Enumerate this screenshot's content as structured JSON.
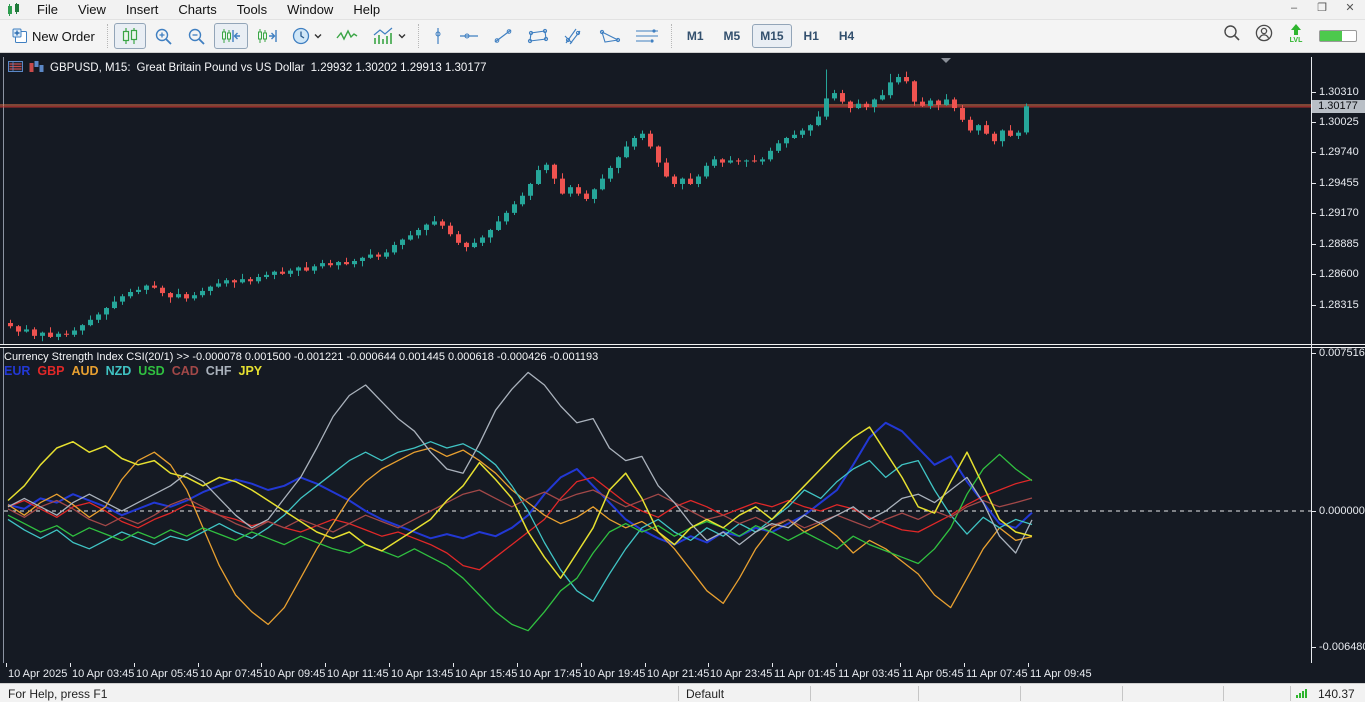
{
  "menu": {
    "items": [
      "File",
      "View",
      "Insert",
      "Charts",
      "Tools",
      "Window",
      "Help"
    ]
  },
  "window_controls": {
    "minimize": "–",
    "maximize": "❐",
    "close": "✕"
  },
  "toolbar": {
    "new_order_label": "New Order",
    "timeframes": [
      {
        "label": "M1",
        "active": false
      },
      {
        "label": "M5",
        "active": false
      },
      {
        "label": "M15",
        "active": true
      },
      {
        "label": "H1",
        "active": false
      },
      {
        "label": "H4",
        "active": false
      }
    ]
  },
  "chart": {
    "title_symbol": "GBPUSD, M15:",
    "title_description": "Great Britain Pound vs US Dollar",
    "title_ohlc": "1.29932 1.30202 1.29913 1.30177",
    "price_axis_labels": [
      "1.30310",
      "1.30025",
      "1.29740",
      "1.29455",
      "1.29170",
      "1.28885",
      "1.28600",
      "1.28315"
    ],
    "current_price_label": "1.30177",
    "colors": {
      "up": "#26a69a",
      "down": "#ef5350",
      "ask_line": "#e8744a",
      "bid_line": "#dd3c34",
      "background": "#151a23"
    }
  },
  "indicator": {
    "title": "Currency Strength Index CSI(20/1) >>",
    "values_line": "-0.000078 0.001500 -0.001221 -0.000644 0.001445 0.000618 -0.000426 -0.001193",
    "axis_labels": [
      {
        "label": "0.007516",
        "value": 0.007516
      },
      {
        "label": "0.000000",
        "value": 0.0
      },
      {
        "label": "-0.006480",
        "value": -0.00648
      }
    ],
    "legend": [
      {
        "label": "EUR",
        "color": "#2238d4"
      },
      {
        "label": "GBP",
        "color": "#e02828"
      },
      {
        "label": "AUD",
        "color": "#e8a030"
      },
      {
        "label": "NZD",
        "color": "#40c4c4"
      },
      {
        "label": "USD",
        "color": "#30c040"
      },
      {
        "label": "CAD",
        "color": "#a24848"
      },
      {
        "label": "CHF",
        "color": "#aab2bc"
      },
      {
        "label": "JPY",
        "color": "#e6e030"
      }
    ]
  },
  "time_axis": {
    "labels": [
      "10 Apr 2025",
      "10 Apr 03:45",
      "10 Apr 05:45",
      "10 Apr 07:45",
      "10 Apr 09:45",
      "10 Apr 11:45",
      "10 Apr 13:45",
      "10 Apr 15:45",
      "10 Apr 17:45",
      "10 Apr 19:45",
      "10 Apr 21:45",
      "10 Apr 23:45",
      "11 Apr 01:45",
      "11 Apr 03:45",
      "11 Apr 05:45",
      "11 Apr 07:45",
      "11 Apr 09:45"
    ]
  },
  "status_bar": {
    "help_text": "For Help, press F1",
    "profile": "Default",
    "latency": "140.37 ms"
  },
  "chart_data": [
    {
      "type": "candlestick",
      "symbol": "GBPUSD",
      "timeframe": "M15",
      "title": "Great Britain Pound vs US Dollar",
      "ylim": [
        1.2795,
        1.3055
      ],
      "current_price": 1.30177,
      "open_rule": "previous_close",
      "first_open": 1.2815,
      "closes": [
        1.2812,
        1.2807,
        1.2809,
        1.2803,
        1.2806,
        1.2802,
        1.2805,
        1.2804,
        1.2808,
        1.2813,
        1.2818,
        1.2823,
        1.2829,
        1.2835,
        1.284,
        1.2844,
        1.2846,
        1.285,
        1.2848,
        1.2843,
        1.2839,
        1.2842,
        1.2838,
        1.2841,
        1.2845,
        1.2849,
        1.2852,
        1.2855,
        1.2853,
        1.2856,
        1.2854,
        1.2858,
        1.286,
        1.2863,
        1.2861,
        1.2864,
        1.2867,
        1.2864,
        1.2868,
        1.2871,
        1.2869,
        1.2872,
        1.287,
        1.2873,
        1.2876,
        1.2879,
        1.2877,
        1.2881,
        1.2888,
        1.2893,
        1.2897,
        1.2902,
        1.2907,
        1.291,
        1.2906,
        1.2898,
        1.289,
        1.2886,
        1.289,
        1.2895,
        1.2902,
        1.291,
        1.2918,
        1.2926,
        1.2934,
        1.2945,
        1.2958,
        1.2963,
        1.295,
        1.2936,
        1.2942,
        1.2936,
        1.2931,
        1.294,
        1.295,
        1.296,
        1.297,
        1.298,
        1.2988,
        1.2992,
        1.298,
        1.2965,
        1.2952,
        1.2945,
        1.295,
        1.2945,
        1.2952,
        1.2962,
        1.2968,
        1.2965,
        1.2967,
        1.2966,
        1.2967,
        1.2966,
        1.2968,
        1.2976,
        1.2983,
        1.2988,
        1.2991,
        1.2995,
        1.3,
        1.3008,
        1.3025,
        1.303,
        1.3022,
        1.3016,
        1.302,
        1.3017,
        1.3024,
        1.3028,
        1.304,
        1.3045,
        1.3041,
        1.3022,
        1.3018,
        1.3023,
        1.3019,
        1.3024,
        1.3016,
        1.3005,
        1.2995,
        1.3,
        1.2992,
        1.2985,
        1.2995,
        1.299,
        1.2993,
        1.30177
      ],
      "wick_high_pads": [
        0.0003,
        0.0001,
        0.0004,
        0.0002,
        0.0001,
        0.0005,
        0.0002,
        0.0003
      ],
      "wick_low_pads": [
        0.0002,
        0.0004,
        0.0001,
        0.0003,
        0.0005,
        0.0001,
        0.0003,
        0.0002
      ],
      "overrides": {
        "102": {
          "high": 1.3052
        },
        "110": {
          "high": 1.3048
        },
        "112": {
          "high": 1.305
        },
        "127": {
          "open": 1.29932,
          "high": 1.30202,
          "low": 1.29913,
          "close": 1.30177
        }
      }
    },
    {
      "type": "line",
      "title": "Currency Strength Index CSI(20/1)",
      "ylim": [
        -0.00648,
        0.007516
      ],
      "zero_line": 0,
      "legend_position": "top-left",
      "series": [
        {
          "name": "EUR",
          "color": "#2238d4",
          "width": 2,
          "values": [
            0.0003,
            0.0001,
            0.0006,
            0.0004,
            0.0008,
            0.0005,
            0.0002,
            -0.0002,
            0.0001,
            0.0004,
            0.0002,
            0.0005,
            0.0009,
            0.0012,
            0.0015,
            0.0013,
            0.001,
            0.0012,
            0.0016,
            0.0013,
            0.0009,
            0.0005,
            0.0,
            -0.0004,
            -0.0007,
            -0.001,
            -0.0013,
            -0.0011,
            -0.0013,
            -0.001,
            -0.0012,
            -0.0008,
            -0.0002,
            0.0008,
            0.0016,
            0.002,
            0.0012,
            0.0004,
            -0.0004,
            -0.0009,
            -0.0013,
            -0.0016,
            -0.0012,
            -0.0015,
            -0.001,
            -0.0012,
            -0.0008,
            -0.001,
            -0.0006,
            -0.0002,
            0.0004,
            0.001,
            0.0022,
            0.0035,
            0.0042,
            0.0038,
            0.003,
            0.0022,
            0.0026,
            0.0014,
            0.0004,
            -0.0006,
            -0.0008,
            -7.8e-05
          ]
        },
        {
          "name": "GBP",
          "color": "#e02828",
          "width": 1.3,
          "values": [
            0.0002,
            0.0005,
            0.0001,
            -0.0003,
            0.0002,
            0.0004,
            0.0,
            -0.0005,
            -0.0008,
            -0.0004,
            -0.0001,
            0.0003,
            0.0001,
            -0.0002,
            -0.0004,
            -0.0007,
            -0.0005,
            -0.0008,
            -0.001,
            -0.0007,
            -0.0004,
            -0.0006,
            -0.0009,
            -0.0012,
            -0.001,
            -0.0013,
            -0.0016,
            -0.002,
            -0.0026,
            -0.0028,
            -0.0022,
            -0.0016,
            -0.001,
            -0.0004,
            0.0006,
            0.0014,
            0.0016,
            0.001,
            0.0004,
            0.0,
            -0.0003,
            0.0002,
            0.0005,
            0.0002,
            -0.0002,
            0.0001,
            0.0004,
            0.0002,
            0.0005,
            0.0002,
            0.0,
            0.0003,
            0.0001,
            -0.0003,
            -0.0006,
            -0.0009,
            -0.001,
            -0.0006,
            -0.0002,
            0.0003,
            0.0007,
            0.001,
            0.0013,
            0.0015
          ]
        },
        {
          "name": "AUD",
          "color": "#e8a030",
          "width": 1.3,
          "values": [
            0.0003,
            -0.0002,
            0.0004,
            0.0008,
            0.0003,
            -0.0003,
            0.0002,
            0.0015,
            0.0024,
            0.0028,
            0.0022,
            0.001,
            -0.0008,
            -0.0026,
            -0.004,
            -0.0048,
            -0.0054,
            -0.0046,
            -0.0032,
            -0.0018,
            -0.0006,
            0.0006,
            0.0014,
            0.002,
            0.0024,
            0.0028,
            0.003,
            0.0026,
            0.0029,
            0.0024,
            0.0018,
            0.001,
            0.0004,
            -0.0002,
            -0.0006,
            -0.0003,
            0.0002,
            -0.0004,
            -0.0008,
            -0.0005,
            -0.001,
            -0.0018,
            -0.0028,
            -0.0038,
            -0.0044,
            -0.0032,
            -0.0018,
            -0.0008,
            -0.0004,
            -0.001,
            -0.0006,
            -0.0012,
            -0.002,
            -0.0014,
            -0.0018,
            -0.0024,
            -0.003,
            -0.004,
            -0.0046,
            -0.0032,
            -0.0018,
            -0.0008,
            -0.0014,
            -0.001221
          ]
        },
        {
          "name": "NZD",
          "color": "#40c4c4",
          "width": 1.3,
          "values": [
            -0.0004,
            -0.0009,
            -0.0013,
            -0.0009,
            -0.0015,
            -0.0018,
            -0.0014,
            -0.001,
            -0.0013,
            -0.0016,
            -0.0012,
            -0.0014,
            -0.001,
            -0.0006,
            -0.001,
            -0.0013,
            -0.0008,
            -0.0002,
            0.0006,
            0.0012,
            0.0018,
            0.0024,
            0.0028,
            0.0024,
            0.0028,
            0.003,
            0.0033,
            0.003,
            0.0032,
            0.0028,
            0.0022,
            0.0012,
            0.0,
            -0.0015,
            -0.0028,
            -0.0038,
            -0.0043,
            -0.003,
            -0.0018,
            -0.0008,
            -0.0004,
            -0.001,
            -0.0014,
            -0.0008,
            -0.0012,
            -0.0006,
            -0.001,
            -0.0004,
            0.0002,
            0.001,
            0.0006,
            0.0014,
            0.002,
            0.0024,
            0.0016,
            0.0022,
            0.0024,
            0.001,
            -0.0002,
            -0.0011,
            -0.0003,
            -0.0008,
            -0.0004,
            -0.000644
          ]
        },
        {
          "name": "USD",
          "color": "#30c040",
          "width": 1.3,
          "values": [
            -0.0002,
            -0.0006,
            -0.001,
            -0.0007,
            -0.0012,
            -0.0008,
            -0.0011,
            -0.0014,
            -0.001,
            -0.0013,
            -0.0009,
            -0.0012,
            -0.0008,
            -0.0011,
            -0.0014,
            -0.001,
            -0.0013,
            -0.0016,
            -0.0012,
            -0.0015,
            -0.0018,
            -0.002,
            -0.0016,
            -0.0019,
            -0.0022,
            -0.0018,
            -0.0022,
            -0.0026,
            -0.0032,
            -0.004,
            -0.0048,
            -0.0054,
            -0.0057,
            -0.0048,
            -0.0038,
            -0.0032,
            -0.002,
            -0.001,
            -0.0006,
            -0.001,
            -0.0007,
            -0.0012,
            -0.0008,
            -0.0005,
            -0.0008,
            -0.0012,
            -0.0007,
            -0.001,
            -0.0014,
            -0.001,
            -0.0014,
            -0.0018,
            -0.0012,
            -0.0016,
            -0.0019,
            -0.0022,
            -0.0025,
            -0.0018,
            -0.0008,
            0.0008,
            0.002,
            0.0027,
            0.002,
            0.001445
          ]
        },
        {
          "name": "CAD",
          "color": "#a24848",
          "width": 1.3,
          "values": [
            0.0001,
            -0.0003,
            0.0002,
            0.0005,
            0.0001,
            -0.0004,
            -0.0007,
            -0.0003,
            -0.0006,
            -0.0002,
            0.0003,
            0.0006,
            0.0002,
            -0.0002,
            -0.0006,
            -0.0009,
            -0.0005,
            -0.0008,
            -0.0004,
            -0.0007,
            -0.001,
            -0.0006,
            -0.0002,
            -0.0005,
            -0.0008,
            -0.0004,
            0.0,
            0.0004,
            0.0008,
            0.001,
            0.0006,
            0.0002,
            0.0006,
            0.0009,
            0.0005,
            0.0008,
            0.001,
            0.0006,
            0.0002,
            0.0005,
            0.0008,
            0.0004,
            0.0,
            -0.0004,
            -0.0002,
            -0.0006,
            -0.0003,
            -0.0007,
            -0.0004,
            -0.0008,
            -0.0005,
            -0.0002,
            -0.0005,
            -0.0008,
            -0.0004,
            -0.0001,
            -0.0004,
            0.0,
            -0.0003,
            0.0002,
            0.0005,
            0.0002,
            0.0004,
            0.000618
          ]
        },
        {
          "name": "CHF",
          "color": "#aab2bc",
          "width": 1.3,
          "values": [
            0.0002,
            0.0006,
            0.0002,
            -0.0002,
            0.0004,
            0.0008,
            0.0004,
            0.0,
            0.0004,
            0.0008,
            0.0012,
            0.0018,
            0.0014,
            0.0006,
            -0.0002,
            -0.0008,
            -0.0004,
            0.0006,
            0.0016,
            0.003,
            0.0045,
            0.0055,
            0.006,
            0.0052,
            0.0044,
            0.0038,
            0.0028,
            0.002,
            0.0018,
            0.0032,
            0.0048,
            0.0058,
            0.0066,
            0.006,
            0.005,
            0.0042,
            0.0044,
            0.003,
            0.0024,
            0.0026,
            0.0012,
            0.0004,
            -0.0006,
            -0.0014,
            -0.001,
            -0.0016,
            -0.001,
            -0.0006,
            -0.0008,
            -0.0002,
            -0.0006,
            -0.0002,
            0.0002,
            -0.0004,
            0.0,
            0.0006,
            0.0008,
            0.0004,
            0.001,
            0.0016,
            0.0004,
            -0.0012,
            -0.002,
            -0.000426
          ]
        },
        {
          "name": "JPY",
          "color": "#e6e030",
          "width": 1.5,
          "values": [
            0.0005,
            0.0012,
            0.0022,
            0.003,
            0.0033,
            0.0028,
            0.0031,
            0.0025,
            0.0022,
            0.0024,
            0.0018,
            0.0016,
            0.0012,
            0.0016,
            0.0014,
            0.001,
            0.0005,
            0.0,
            -0.0005,
            -0.001,
            -0.0013,
            -0.001,
            -0.0016,
            -0.0019,
            -0.0014,
            -0.0009,
            -0.0004,
            0.0005,
            0.0012,
            0.0023,
            0.0015,
            0.0006,
            -0.001,
            -0.0022,
            -0.0032,
            -0.002,
            -0.0008,
            0.001,
            0.0018,
            0.0006,
            -0.001,
            -0.0016,
            -0.0008,
            -0.0004,
            -0.0008,
            -0.0002,
            0.0002,
            -0.0004,
            0.0004,
            0.0012,
            0.002,
            0.0028,
            0.0035,
            0.004,
            0.0028,
            0.0016,
            0.0002,
            -0.0001,
            0.0014,
            0.0028,
            0.0012,
            -0.0004,
            -0.001,
            -0.001193
          ]
        }
      ]
    }
  ]
}
